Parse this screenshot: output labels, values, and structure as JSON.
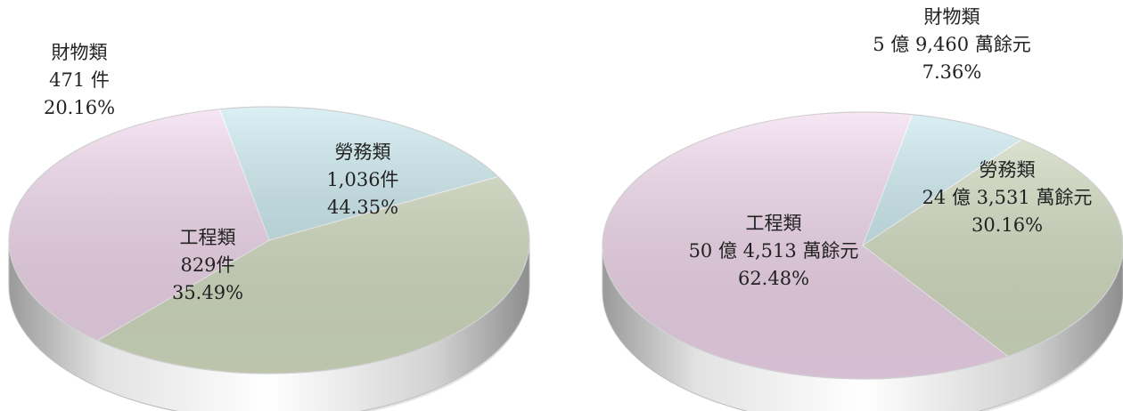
{
  "colors": {
    "工程類": "#f3d9ef",
    "勞務類": "#d6e0c4",
    "財物類": "#c7e8ee",
    "side": "#d8d8d8"
  },
  "chart_data": [
    {
      "type": "pie",
      "title": "",
      "slices": [
        {
          "category": "勞務類",
          "value_text": "1,036件",
          "value": 1036,
          "percent_text": "44.35%",
          "percent": 44.35
        },
        {
          "category": "工程類",
          "value_text": "829件",
          "value": 829,
          "percent_text": "35.49%",
          "percent": 35.49
        },
        {
          "category": "財物類",
          "value_text": "471 件",
          "value": 471,
          "percent_text": "20.16%",
          "percent": 20.16
        }
      ]
    },
    {
      "type": "pie",
      "title": "",
      "slices": [
        {
          "category": "勞務類",
          "value_text": "24 億 3,531 萬餘元",
          "percent_text": "30.16%",
          "percent": 30.16
        },
        {
          "category": "工程類",
          "value_text": "50 億 4,513 萬餘元",
          "percent_text": "62.48%",
          "percent": 62.48
        },
        {
          "category": "財物類",
          "value_text": "5 億 9,460 萬餘元",
          "percent_text": "7.36%",
          "percent": 7.36
        }
      ]
    }
  ]
}
